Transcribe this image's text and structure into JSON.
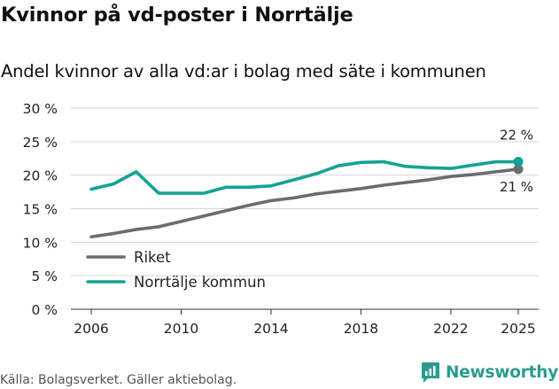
{
  "title": "Kvinnor på vd-poster i Norrtälje",
  "subtitle": "Andel kvinnor av alla vd:ar i bolag med säte i kommunen",
  "source": "Källa: Bolagsverket. Gäller aktiebolag.",
  "brand": "Newsworthy",
  "colors": {
    "riket": "#6b6b70",
    "norrtalje": "#14a392",
    "brand": "#2a9d8f"
  },
  "chart_data": {
    "type": "line",
    "title": "Kvinnor på vd-poster i Norrtälje",
    "subtitle": "Andel kvinnor av alla vd:ar i bolag med säte i kommunen",
    "xlabel": "",
    "ylabel": "",
    "xlim": [
      2006,
      2025
    ],
    "ylim": [
      0,
      30
    ],
    "x_ticks": [
      2006,
      2010,
      2014,
      2018,
      2022,
      2025
    ],
    "y_ticks": [
      0,
      5,
      10,
      15,
      20,
      25,
      30
    ],
    "y_tick_labels": [
      "0 %",
      "5 %",
      "10 %",
      "15 %",
      "20 %",
      "25 %",
      "30 %"
    ],
    "grid": "horizontal",
    "legend_position": "bottom-left",
    "x": [
      2006,
      2007,
      2008,
      2009,
      2010,
      2011,
      2012,
      2013,
      2014,
      2015,
      2016,
      2017,
      2018,
      2019,
      2020,
      2021,
      2022,
      2023,
      2024,
      2025
    ],
    "series": [
      {
        "name": "Riket",
        "key": "riket",
        "values": [
          10.8,
          11.3,
          11.9,
          12.3,
          13.1,
          13.9,
          14.7,
          15.5,
          16.2,
          16.6,
          17.2,
          17.6,
          18.0,
          18.5,
          18.9,
          19.3,
          19.8,
          20.1,
          20.5,
          20.9
        ],
        "end_label": "21 %"
      },
      {
        "name": "Norrtälje kommun",
        "key": "norrtalje",
        "values": [
          17.9,
          18.7,
          20.5,
          17.3,
          17.3,
          17.3,
          18.2,
          18.2,
          18.4,
          19.3,
          20.2,
          21.4,
          21.9,
          22.0,
          21.3,
          21.1,
          21.0,
          21.5,
          22.0,
          22.0
        ],
        "end_label": "22 %"
      }
    ]
  }
}
